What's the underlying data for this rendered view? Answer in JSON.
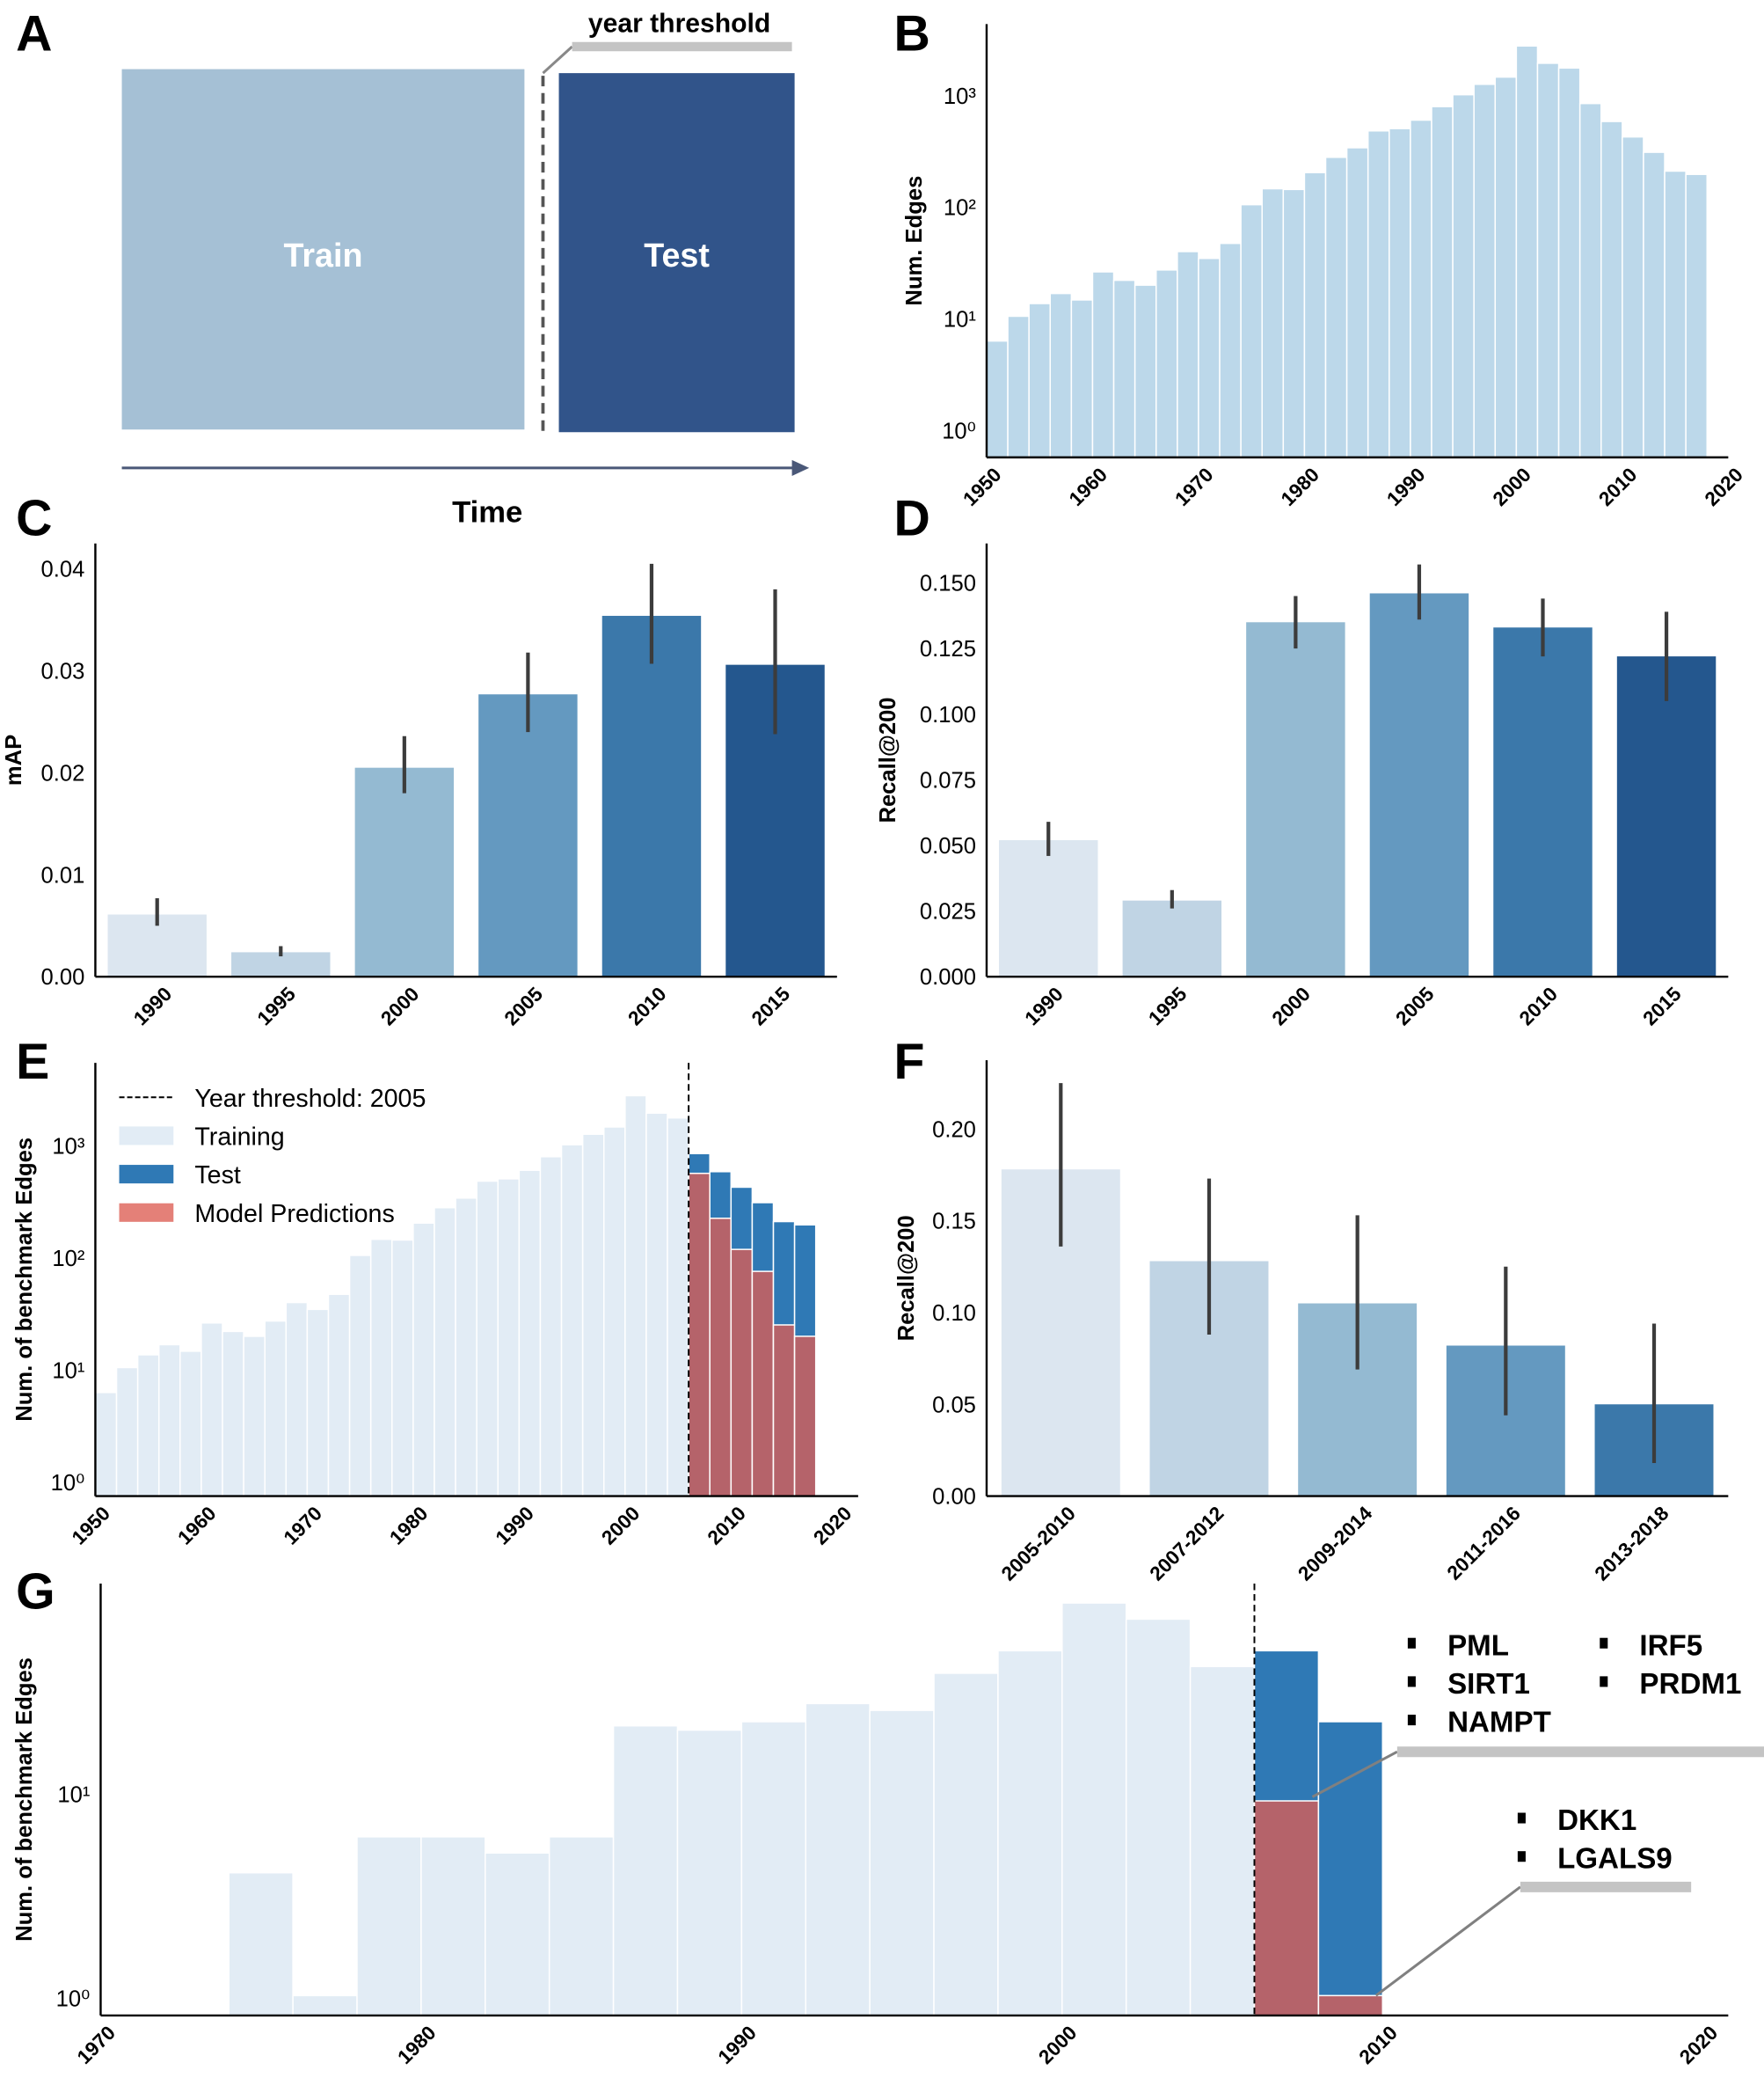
{
  "panel_labels": {
    "A": "A",
    "B": "B",
    "C": "C",
    "D": "D",
    "E": "E",
    "F": "F",
    "G": "G"
  },
  "panel_a": {
    "train_label": "Train",
    "test_label": "Test",
    "threshold_label": "year threshold",
    "time_label": "Time"
  },
  "colors": {
    "train_block": "#a5c0d5",
    "test_block": "#31548a",
    "hist": "#bcd8ea",
    "training": "#e2ecf5",
    "test": "#2f79b5",
    "predictions": "#b5636a",
    "predictions_legend": "#e48078",
    "blues": [
      "#dce6f0",
      "#c0d4e4",
      "#94bad2",
      "#6499c0",
      "#3b78aa",
      "#24578e"
    ]
  },
  "chart_data": [
    {
      "panel": "B",
      "type": "bar",
      "yscale": "log",
      "xlabel": "",
      "ylabel": "Num. Edges",
      "bin_width": 2,
      "x": [
        1950,
        1952,
        1954,
        1956,
        1958,
        1960,
        1962,
        1964,
        1966,
        1968,
        1970,
        1972,
        1974,
        1976,
        1978,
        1980,
        1982,
        1984,
        1986,
        1988,
        1990,
        1992,
        1994,
        1996,
        1998,
        2000,
        2002,
        2004,
        2006,
        2008,
        2010,
        2012,
        2014,
        2016
      ],
      "values": [
        6,
        10,
        13,
        16,
        14,
        25,
        21,
        19,
        26,
        38,
        33,
        45,
        100,
        139,
        137,
        194,
        266,
        324,
        459,
        481,
        573,
        757,
        968,
        1200,
        1393,
        2648,
        1853,
        1679,
        807,
        557,
        405,
        295,
        200,
        187
      ],
      "xticks": [
        1950,
        1960,
        1970,
        1980,
        1990,
        2000,
        2010,
        2020
      ],
      "xticklabels": [
        "1950",
        "1960",
        "1970",
        "1980",
        "1990",
        "2000",
        "2010",
        "2020"
      ],
      "yticks": [
        1,
        10,
        100,
        1000
      ],
      "yticklabels": [
        "10⁰",
        "10¹",
        "10²",
        "10³"
      ],
      "xlim": [
        1950,
        2020
      ],
      "ylim": [
        0.5,
        4000
      ]
    },
    {
      "panel": "C",
      "type": "bar",
      "xlabel": "",
      "ylabel": "mAP",
      "categories": [
        "1990",
        "1995",
        "2000",
        "2005",
        "2010",
        "2015"
      ],
      "values": [
        0.0061,
        0.0024,
        0.0205,
        0.0277,
        0.0354,
        0.0306
      ],
      "err_low": [
        0.005,
        0.002,
        0.018,
        0.024,
        0.0307,
        0.0238
      ],
      "err_high": [
        0.0077,
        0.003,
        0.0236,
        0.0318,
        0.0405,
        0.038
      ],
      "yticks": [
        0,
        0.01,
        0.02,
        0.03,
        0.04
      ],
      "yticklabels": [
        "0.00",
        "0.01",
        "0.02",
        "0.03",
        "0.04"
      ],
      "ylim": [
        0,
        0.0425
      ]
    },
    {
      "panel": "D",
      "type": "bar",
      "xlabel": "",
      "ylabel": "Recall@200",
      "categories": [
        "1990",
        "1995",
        "2000",
        "2005",
        "2010",
        "2015"
      ],
      "values": [
        0.052,
        0.029,
        0.135,
        0.146,
        0.133,
        0.122
      ],
      "err_low": [
        0.046,
        0.026,
        0.125,
        0.136,
        0.122,
        0.105
      ],
      "err_high": [
        0.059,
        0.033,
        0.145,
        0.157,
        0.144,
        0.139
      ],
      "yticks": [
        0,
        0.025,
        0.05,
        0.075,
        0.1,
        0.125,
        0.15
      ],
      "yticklabels": [
        "0.000",
        "0.025",
        "0.050",
        "0.075",
        "0.100",
        "0.125",
        "0.150"
      ],
      "ylim": [
        0,
        0.165
      ]
    },
    {
      "panel": "E",
      "type": "bar",
      "yscale": "log",
      "stacked": true,
      "xlabel": "",
      "ylabel": "Num. of benchmark Edges",
      "bin_width": 2,
      "threshold_year": 2006,
      "legend": [
        "Year threshold: 2005",
        "Training",
        "Test",
        "Model Predictions"
      ],
      "legend_position": "top-left",
      "train_x": [
        1950,
        1952,
        1954,
        1956,
        1958,
        1960,
        1962,
        1964,
        1966,
        1968,
        1970,
        1972,
        1974,
        1976,
        1978,
        1980,
        1982,
        1984,
        1986,
        1988,
        1990,
        1992,
        1994,
        1996,
        1998,
        2000,
        2002,
        2004
      ],
      "train_values": [
        6,
        10,
        13,
        16,
        14,
        25,
        21,
        19,
        26,
        38,
        33,
        45,
        100,
        139,
        137,
        194,
        266,
        324,
        459,
        481,
        573,
        757,
        968,
        1200,
        1393,
        2648,
        1853,
        1679
      ],
      "test_x": [
        2006,
        2008,
        2010,
        2012,
        2014,
        2016
      ],
      "test_values": [
        807,
        557,
        405,
        295,
        200,
        187
      ],
      "pred_values": [
        538,
        214,
        113,
        72,
        24,
        19
      ],
      "xticks": [
        1950,
        1960,
        1970,
        1980,
        1990,
        2000,
        2010,
        2020
      ],
      "xticklabels": [
        "1950",
        "1960",
        "1970",
        "1980",
        "1990",
        "2000",
        "2010",
        "2020"
      ],
      "yticks": [
        1,
        10,
        100,
        1000
      ],
      "yticklabels": [
        "10⁰",
        "10¹",
        "10²",
        "10³"
      ],
      "xlim": [
        1950,
        2020
      ],
      "ylim": [
        0.6,
        5000
      ]
    },
    {
      "panel": "F",
      "type": "bar",
      "xlabel": "",
      "ylabel": "Recall@200",
      "categories": [
        "2005-2010",
        "2007-2012",
        "2009-2014",
        "2011-2016",
        "2013-2018"
      ],
      "values": [
        0.178,
        0.128,
        0.105,
        0.082,
        0.05
      ],
      "err_low": [
        0.136,
        0.088,
        0.069,
        0.044,
        0.018
      ],
      "err_high": [
        0.225,
        0.173,
        0.153,
        0.125,
        0.094
      ],
      "yticks": [
        0,
        0.05,
        0.1,
        0.15,
        0.2
      ],
      "yticklabels": [
        "0.00",
        "0.05",
        "0.10",
        "0.15",
        "0.20"
      ],
      "ylim": [
        0,
        0.2375
      ]
    },
    {
      "panel": "G",
      "type": "bar",
      "yscale": "log",
      "stacked": true,
      "xlabel": "",
      "ylabel": "Num. of benchmark Edges",
      "bin_width": 2,
      "threshold_year": 2006,
      "train_x": [
        1974,
        1976,
        1978,
        1980,
        1982,
        1984,
        1986,
        1988,
        1990,
        1992,
        1994,
        1996,
        1998,
        2000,
        2002,
        2004
      ],
      "train_values": [
        4,
        1,
        6,
        6,
        5,
        6,
        21,
        20,
        22,
        27,
        25,
        38,
        49,
        84,
        70,
        41
      ],
      "test_x": [
        2006,
        2008
      ],
      "test_values": [
        49,
        22
      ],
      "pred_values": [
        9,
        1
      ],
      "annotations": [
        {
          "bar_year": 2006,
          "genes": [
            "PML",
            "SIRT1",
            "NAMPT",
            "IRF5",
            "PRDM1"
          ]
        },
        {
          "bar_year": 2008,
          "genes": [
            "DKK1",
            "LGALS9"
          ]
        }
      ],
      "xticks": [
        1970,
        1980,
        1990,
        2000,
        2010,
        2020
      ],
      "xticklabels": [
        "1970",
        "1980",
        "1990",
        "2000",
        "2010",
        "2020"
      ],
      "yticks": [
        1,
        10
      ],
      "yticklabels": [
        "10⁰",
        "10¹"
      ],
      "xlim": [
        1970,
        2020
      ],
      "ylim": [
        0.73,
        100
      ]
    }
  ]
}
